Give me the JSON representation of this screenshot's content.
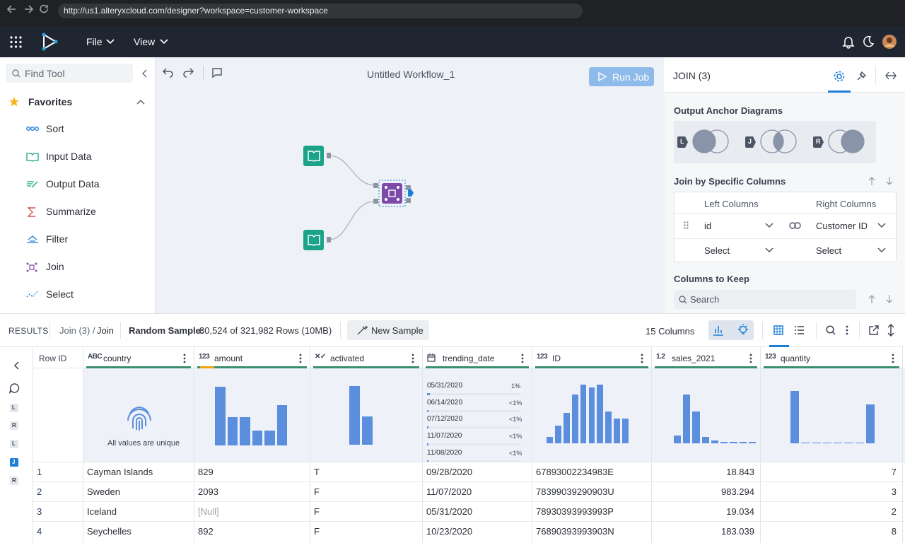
{
  "browser": {
    "url": "http://us1.alteryxcloud.com/designer?workspace=customer-workspace"
  },
  "menu": [
    "File",
    "View"
  ],
  "sidebar": {
    "search_placeholder": "Find Tool",
    "section": "Favorites",
    "tools": [
      "Sort",
      "Input Data",
      "Output Data",
      "Summarize",
      "Filter",
      "Join",
      "Select"
    ]
  },
  "canvas": {
    "title": "Untitled Workflow_1",
    "run_button": "Run Job"
  },
  "config": {
    "title": "JOIN (3)",
    "anchor_heading": "Output Anchor Diagrams",
    "anchors": [
      "L",
      "J",
      "R"
    ],
    "join_heading": "Join by Specific Columns",
    "left_header": "Left Columns",
    "right_header": "Right Columns",
    "rows": [
      [
        "id",
        "Customer ID"
      ],
      [
        "Select",
        "Select"
      ]
    ],
    "keep_heading": "Columns to Keep",
    "search_placeholder": "Search"
  },
  "results": {
    "label": "RESULTS",
    "breadcrumb_parent": "Join (3) /",
    "breadcrumb_current": "Join",
    "sample_label": "Random Sample:",
    "sample_text": "80,524 of 321,982 Rows (10MB)",
    "new_sample": "New Sample",
    "columns_count": "15 Columns"
  },
  "side_badges": [
    "L",
    "R",
    "L",
    "J",
    "R"
  ],
  "table": {
    "row_id_header": "Row ID",
    "columns": [
      {
        "name": "country",
        "icon": "ABC",
        "profile_note": "All values are unique"
      },
      {
        "name": "amount",
        "icon": "123",
        "profile": [
          83,
          40,
          40,
          21,
          21,
          57
        ]
      },
      {
        "name": "activated",
        "icon": "✕✓",
        "profile": [
          83,
          40
        ]
      },
      {
        "name": "trending_date",
        "dates": [
          "05/31/2020",
          "06/14/2020",
          "07/12/2020",
          "11/07/2020",
          "11/08/2020"
        ],
        "values": [
          1,
          0.5,
          0.5,
          0.5,
          0.5
        ],
        "value_labels": [
          "1%",
          "<1%",
          "<1%",
          "<1%",
          "<1%"
        ]
      },
      {
        "name": "ID",
        "icon": "123",
        "profile": [
          9,
          25,
          43,
          69,
          83,
          79,
          83,
          45,
          35,
          35
        ]
      },
      {
        "name": "sales_2021",
        "icon": "1.2",
        "profile": [
          11,
          69,
          45,
          9,
          4,
          2,
          2,
          2,
          2
        ]
      },
      {
        "name": "quantity",
        "icon": "123",
        "profile": [
          74,
          1,
          1,
          1,
          1,
          1,
          1,
          55
        ]
      }
    ],
    "rows": [
      [
        "1",
        "Cayman Islands",
        "829",
        "T",
        "09/28/2020",
        "67893002234983E",
        "18.843",
        "7"
      ],
      [
        "2",
        "Sweden",
        "2093",
        "F",
        "11/07/2020",
        "78399039290903U",
        "983.294",
        "3"
      ],
      [
        "3",
        "Iceland",
        "[Null]",
        "F",
        "05/31/2020",
        "78930393993993P",
        "19.034",
        "2"
      ],
      [
        "4",
        "Seychelles",
        "892",
        "F",
        "10/23/2020",
        "76890393993903N",
        "183.039",
        "8"
      ]
    ]
  }
}
